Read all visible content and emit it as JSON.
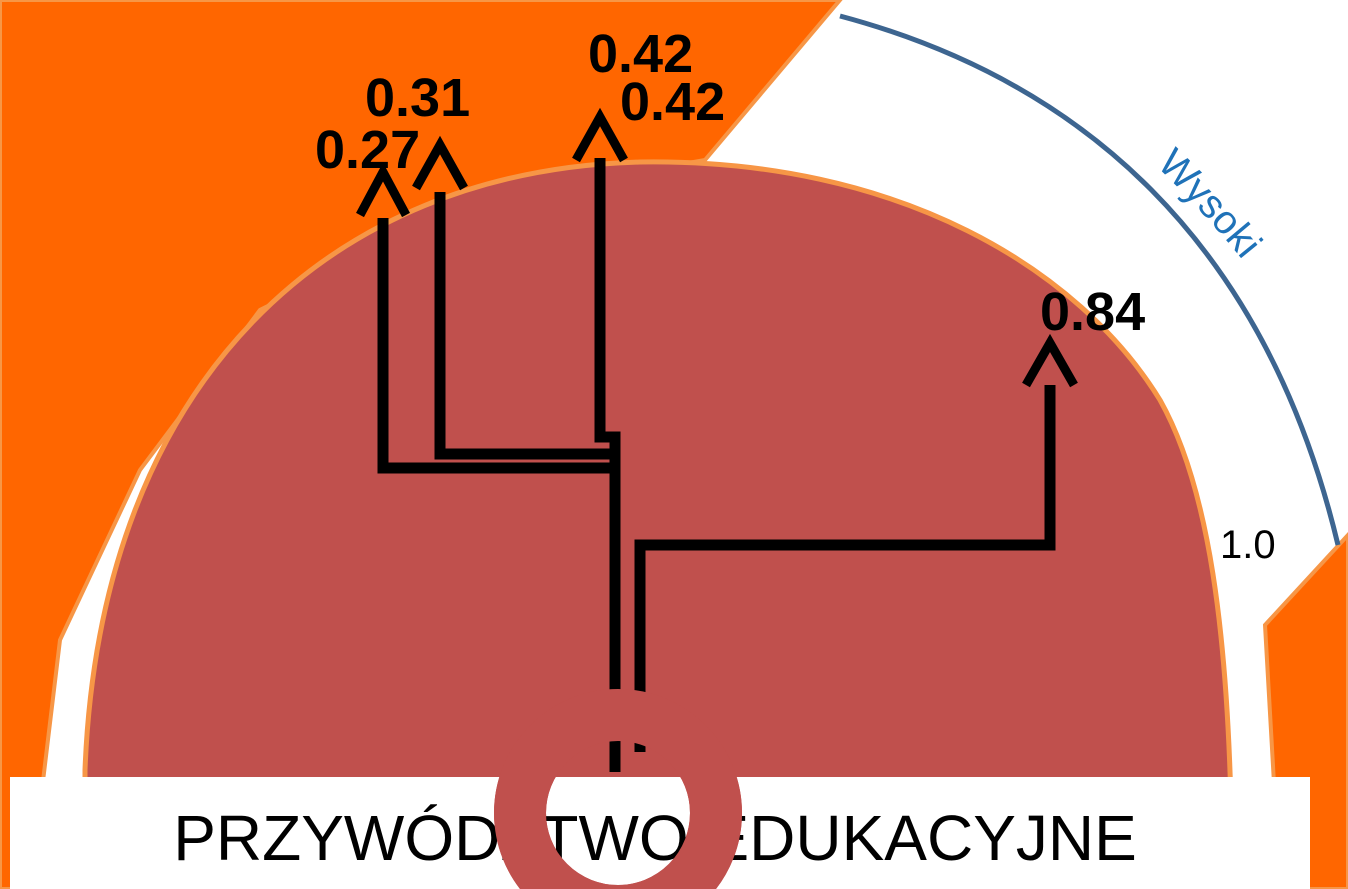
{
  "title": "PRZYWÓDZTWO EDUKACYJNE",
  "arc_label": "Wysoki",
  "scale_max_label": "1.0",
  "indicators": [
    {
      "label": "0.27",
      "value": 0.27
    },
    {
      "label": "0.31",
      "value": 0.31
    },
    {
      "label": "0.42",
      "value": 0.42
    },
    {
      "label": "0.42",
      "value": 0.42
    },
    {
      "label": "0.84",
      "value": 0.84
    }
  ],
  "colors": {
    "orange": "#ff6600",
    "red_dome": "#c0504d",
    "dome_border": "#f79646",
    "arc_line": "#3d6590",
    "arc_label": "#1f72b8",
    "arrows": "#000000"
  }
}
